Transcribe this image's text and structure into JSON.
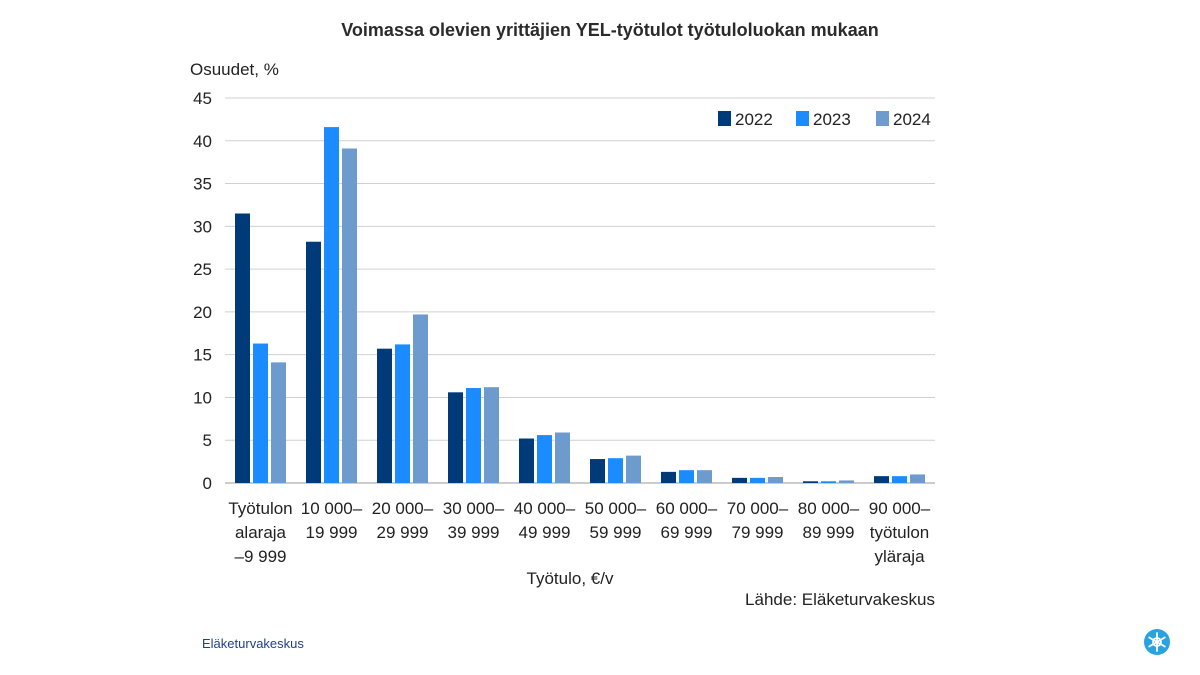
{
  "chart_data": {
    "type": "bar",
    "title": "Voimassa olevien yrittäjien YEL-työtulot työtuloluokan mukaan",
    "ylabel": "Osuudet, %",
    "xlabel": "Työtulo, €/v",
    "source": "Lähde: Eläketurvakeskus",
    "ylim": [
      0,
      45
    ],
    "yticks": [
      0,
      5,
      10,
      15,
      20,
      25,
      30,
      35,
      40,
      45
    ],
    "grid": true,
    "legend_position": "top-right",
    "categories": [
      [
        "Työtulon",
        "alaraja",
        "–9 999"
      ],
      [
        "10 000–",
        "19 999"
      ],
      [
        "20 000–",
        "29 999"
      ],
      [
        "30 000–",
        "39 999"
      ],
      [
        "40 000–",
        "49 999"
      ],
      [
        "50 000–",
        "59 999"
      ],
      [
        "60 000–",
        "69 999"
      ],
      [
        "70 000–",
        "79 999"
      ],
      [
        "80 000–",
        "89 999"
      ],
      [
        "90 000–",
        "työtulon",
        "yläraja"
      ]
    ],
    "series": [
      {
        "name": "2022",
        "color": "#003a78",
        "values": [
          31.5,
          28.2,
          15.7,
          10.6,
          5.2,
          2.8,
          1.3,
          0.6,
          0.2,
          0.8
        ]
      },
      {
        "name": "2023",
        "color": "#1a8cff",
        "values": [
          16.3,
          41.6,
          16.2,
          11.1,
          5.6,
          2.9,
          1.5,
          0.6,
          0.2,
          0.8
        ]
      },
      {
        "name": "2024",
        "color": "#6e9bcd",
        "values": [
          14.1,
          39.1,
          19.7,
          11.2,
          5.9,
          3.2,
          1.5,
          0.7,
          0.3,
          1.0
        ]
      }
    ]
  },
  "footer": {
    "organization": "Eläketurvakeskus",
    "logo_icon": "etk-logo-icon"
  }
}
